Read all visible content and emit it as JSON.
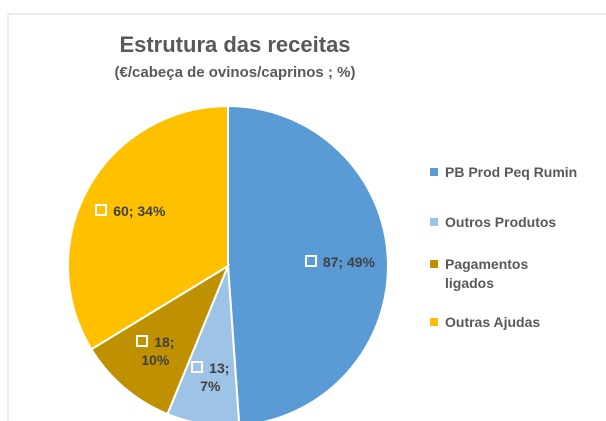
{
  "chart_data": {
    "type": "pie",
    "title": "Estrutura das receitas",
    "subtitle": "(€/cabeça de ovinos/caprinos ; %)",
    "categories": [
      "PB Prod Peq Rumin",
      "Outros Produtos",
      "Pagamentos ligados",
      "Outras Ajudas"
    ],
    "values": [
      87,
      13,
      18,
      60
    ],
    "value_labels": [
      "87; 49%",
      "13; 7%",
      "18; 10%",
      "60; 34%"
    ],
    "colors": [
      "#5b9bd5",
      "#9dc3e6",
      "#bf9000",
      "#ffc000"
    ],
    "legend": "right"
  }
}
